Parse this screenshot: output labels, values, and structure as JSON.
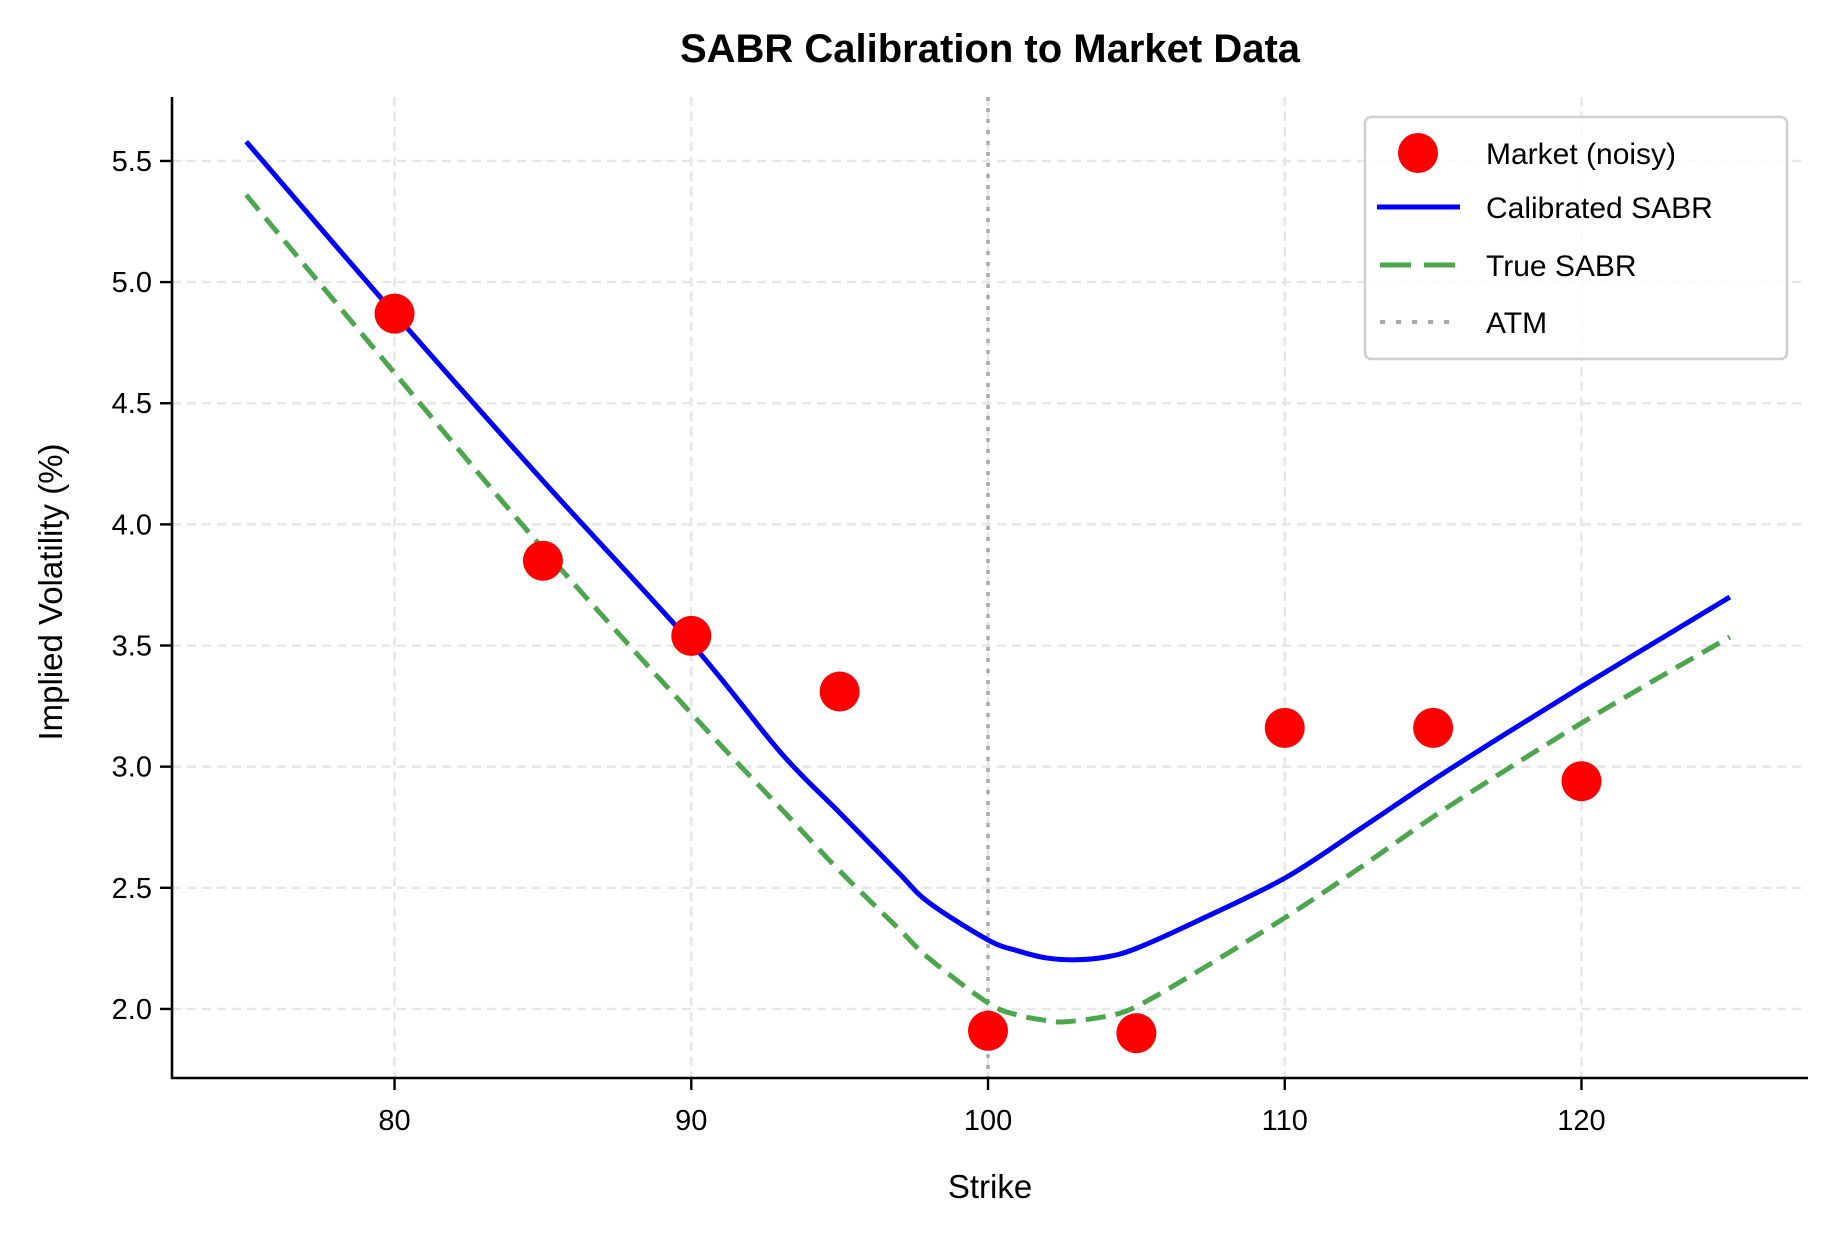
{
  "chart_data": {
    "type": "line",
    "title": "SABR Calibration to Market Data",
    "xlabel": "Strike",
    "ylabel": "Implied Volatility (%)",
    "xlim": [
      72.5,
      127.6
    ],
    "ylim": [
      1.715,
      5.764
    ],
    "xticks": [
      80,
      90,
      100,
      110,
      120
    ],
    "xtick_labels": [
      "80",
      "90",
      "100",
      "110",
      "120"
    ],
    "yticks": [
      2.0,
      2.5,
      3.0,
      3.5,
      4.0,
      4.5,
      5.0,
      5.5
    ],
    "ytick_labels": [
      "2.0",
      "2.5",
      "3.0",
      "3.5",
      "4.0",
      "4.5",
      "5.0",
      "5.5"
    ],
    "grid": true,
    "legend_position": "upper right",
    "series": [
      {
        "name": "Market (noisy)",
        "kind": "scatter",
        "color": "#ff0000",
        "x": [
          80,
          85,
          90,
          95,
          100,
          105,
          110,
          115,
          120
        ],
        "y": [
          4.87,
          3.85,
          3.54,
          3.31,
          1.91,
          1.9,
          3.16,
          3.16,
          2.94
        ]
      },
      {
        "name": "Calibrated SABR",
        "kind": "line",
        "style": "solid",
        "color": "#0000ff",
        "x": [
          75,
          80,
          85,
          90,
          93,
          95,
          97,
          98,
          100,
          101,
          102,
          103,
          104,
          105,
          107,
          110,
          112.5,
          115,
          117.5,
          120,
          122.5,
          125
        ],
        "y": [
          5.58,
          4.87,
          4.18,
          3.51,
          3.06,
          2.81,
          2.56,
          2.44,
          2.285,
          2.24,
          2.21,
          2.203,
          2.215,
          2.25,
          2.36,
          2.54,
          2.74,
          2.945,
          3.14,
          3.33,
          3.515,
          3.7
        ]
      },
      {
        "name": "True SABR",
        "kind": "line",
        "style": "dashed",
        "color": "#4ca64c",
        "x": [
          75,
          80,
          85,
          90,
          93,
          95,
          97,
          98,
          100,
          101,
          102,
          102.6,
          104,
          105,
          107,
          110,
          112.5,
          115,
          117.5,
          120,
          122.5,
          125
        ],
        "y": [
          5.36,
          4.625,
          3.9,
          3.22,
          2.83,
          2.57,
          2.33,
          2.21,
          2.025,
          1.975,
          1.952,
          1.947,
          1.97,
          2.01,
          2.15,
          2.376,
          2.58,
          2.793,
          2.99,
          3.18,
          3.36,
          3.535
        ]
      },
      {
        "name": "ATM",
        "kind": "vline",
        "style": "dotted",
        "color": "#aaaaaa",
        "x": 100
      }
    ]
  },
  "legend": {
    "items": [
      {
        "label": "Market (noisy)",
        "symbol": "marker",
        "color": "#ff0000"
      },
      {
        "label": "Calibrated SABR",
        "symbol": "solid",
        "color": "#0000ff"
      },
      {
        "label": "True SABR",
        "symbol": "dashed",
        "color": "#4ca64c"
      },
      {
        "label": "ATM",
        "symbol": "dotted",
        "color": "#aaaaaa"
      }
    ]
  }
}
